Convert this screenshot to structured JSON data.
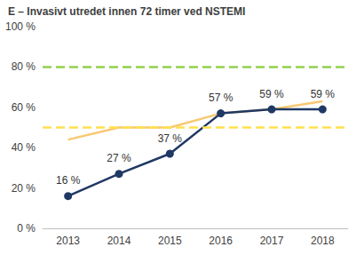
{
  "chart_data": {
    "type": "line",
    "title": "E – Invasivt utredet innen 72 timer ved NSTEMI",
    "categories": [
      "2013",
      "2014",
      "2015",
      "2016",
      "2017",
      "2018"
    ],
    "series": [
      {
        "color": "#f7c873",
        "marker": "none",
        "line_style": "solid",
        "data_labels": false,
        "values": [
          44,
          50,
          50,
          57,
          59,
          63
        ]
      },
      {
        "color": "#1f3864",
        "marker": "circle",
        "line_style": "solid",
        "data_labels": true,
        "values": [
          16,
          27,
          37,
          57,
          59,
          59
        ],
        "value_labels": [
          "16 %",
          "27 %",
          "37 %",
          "57 %",
          "59 %",
          "59 %"
        ]
      }
    ],
    "reference_lines": [
      {
        "value": 80,
        "color": "#92d050",
        "line_style": "dashed"
      },
      {
        "value": 50,
        "color": "#ffe04d",
        "line_style": "dashed"
      }
    ],
    "ylim": [
      0,
      100
    ],
    "yticks": [
      {
        "value": 0,
        "label": "0 %"
      },
      {
        "value": 20,
        "label": "20 %"
      },
      {
        "value": 40,
        "label": "40 %"
      },
      {
        "value": 60,
        "label": "60 %"
      },
      {
        "value": 80,
        "label": "80 %"
      },
      {
        "value": 100,
        "label": "100 %"
      }
    ],
    "grid": false
  }
}
